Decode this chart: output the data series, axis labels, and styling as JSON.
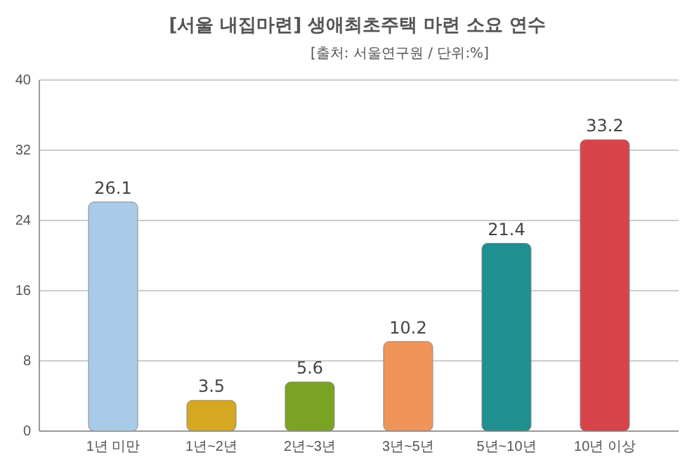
{
  "chart_data": {
    "type": "bar",
    "title": "[서울 내집마련] 생애최초주택 마련 소요 연수",
    "subtitle": "[출처: 서울연구원 / 단위:%]",
    "categories": [
      "1년 미만",
      "1년~2년",
      "2년~3년",
      "3년~5년",
      "5년~10년",
      "10년 이상"
    ],
    "values": [
      26.1,
      3.5,
      5.6,
      10.2,
      21.4,
      33.2
    ],
    "colors": [
      "#a9cbe8",
      "#d4a820",
      "#7aa324",
      "#f0955a",
      "#1f8f8f",
      "#d9444a"
    ],
    "ylim": [
      0,
      40
    ],
    "yticks": [
      0,
      8,
      16,
      24,
      32,
      40
    ],
    "grid": "y",
    "data_labels": true
  }
}
